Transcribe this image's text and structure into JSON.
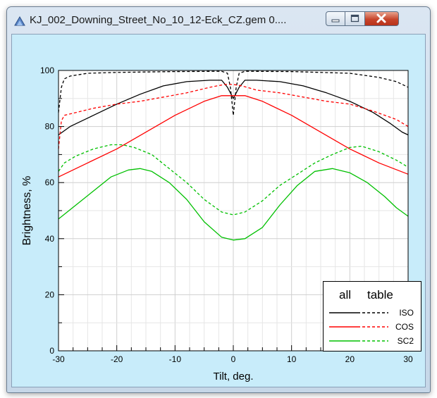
{
  "window": {
    "title": "KJ_002_Downing_Street_No_10_12-Eck_CZ.gem 0....",
    "icon": "app-icon",
    "controls": [
      "minimize-icon",
      "maximize-icon",
      "close-icon"
    ]
  },
  "chart_data": {
    "type": "line",
    "title": "",
    "xlabel": "Tilt, deg.",
    "ylabel": "Brightness, %",
    "xlim": [
      -30,
      30
    ],
    "ylim": [
      0,
      100
    ],
    "xticks": [
      "-30",
      "-20",
      "-10",
      "0",
      "10",
      "20",
      "30"
    ],
    "yticks": [
      "0",
      "20",
      "40",
      "60",
      "80",
      "100"
    ],
    "grid": true,
    "legend": {
      "placement": "bottom-right",
      "headers": [
        "all",
        "table"
      ],
      "entries": [
        "ISO",
        "COS",
        "SC2"
      ]
    },
    "colors": {
      "ISO": "#000000",
      "COS": "#ff0000",
      "SC2": "#00c000"
    },
    "series": [
      {
        "name": "ISO",
        "style": "solid",
        "color": "#000000",
        "points": [
          [
            -30,
            77
          ],
          [
            -28,
            80
          ],
          [
            -24,
            84
          ],
          [
            -20,
            88
          ],
          [
            -16,
            91.5
          ],
          [
            -12,
            94.5
          ],
          [
            -8,
            96
          ],
          [
            -4,
            96.5
          ],
          [
            -2,
            96.5
          ],
          [
            -1,
            94
          ],
          [
            0,
            90
          ],
          [
            1,
            94
          ],
          [
            2,
            96.5
          ],
          [
            4,
            96.5
          ],
          [
            8,
            96
          ],
          [
            12,
            94.5
          ],
          [
            16,
            92
          ],
          [
            20,
            89
          ],
          [
            24,
            85
          ],
          [
            27,
            81
          ],
          [
            29,
            78
          ],
          [
            30,
            77
          ]
        ]
      },
      {
        "name": "ISO",
        "style": "dashed",
        "color": "#000000",
        "points": [
          [
            -30,
            85
          ],
          [
            -29.5,
            94
          ],
          [
            -29,
            97
          ],
          [
            -28,
            98
          ],
          [
            -25,
            99
          ],
          [
            -20,
            99.3
          ],
          [
            -10,
            99.6
          ],
          [
            -2,
            99.7
          ],
          [
            -1,
            99
          ],
          [
            -0.5,
            94
          ],
          [
            0,
            84
          ],
          [
            0.5,
            94
          ],
          [
            1,
            99
          ],
          [
            2,
            99.7
          ],
          [
            10,
            99.6
          ],
          [
            20,
            99
          ],
          [
            25,
            97.5
          ],
          [
            28,
            96
          ],
          [
            30,
            94
          ]
        ]
      },
      {
        "name": "COS",
        "style": "solid",
        "color": "#ff0000",
        "points": [
          [
            -30,
            62
          ],
          [
            -25,
            67
          ],
          [
            -20,
            72
          ],
          [
            -15,
            78
          ],
          [
            -10,
            84
          ],
          [
            -5,
            89
          ],
          [
            -2,
            91
          ],
          [
            0,
            91
          ],
          [
            2,
            91
          ],
          [
            5,
            89
          ],
          [
            10,
            84
          ],
          [
            15,
            78
          ],
          [
            20,
            72
          ],
          [
            25,
            67
          ],
          [
            30,
            63
          ]
        ]
      },
      {
        "name": "COS",
        "style": "dashed",
        "color": "#ff0000",
        "points": [
          [
            -30,
            72
          ],
          [
            -29.5,
            82
          ],
          [
            -29,
            84
          ],
          [
            -27,
            85
          ],
          [
            -24,
            86.5
          ],
          [
            -20,
            88
          ],
          [
            -16,
            89
          ],
          [
            -12,
            90.5
          ],
          [
            -8,
            92
          ],
          [
            -4,
            94
          ],
          [
            -1.5,
            95
          ],
          [
            0,
            95
          ],
          [
            1.5,
            94.5
          ],
          [
            4,
            93
          ],
          [
            8,
            92
          ],
          [
            12,
            90.5
          ],
          [
            16,
            89
          ],
          [
            20,
            88
          ],
          [
            24,
            85.5
          ],
          [
            28,
            82.5
          ],
          [
            30,
            80
          ]
        ]
      },
      {
        "name": "SC2",
        "style": "solid",
        "color": "#00c000",
        "points": [
          [
            -30,
            47
          ],
          [
            -27,
            52
          ],
          [
            -24,
            57
          ],
          [
            -21,
            62
          ],
          [
            -18,
            64.5
          ],
          [
            -16,
            65
          ],
          [
            -14,
            64
          ],
          [
            -11,
            60
          ],
          [
            -8,
            54
          ],
          [
            -5,
            46
          ],
          [
            -2,
            40.5
          ],
          [
            0,
            39.5
          ],
          [
            2,
            40
          ],
          [
            5,
            44
          ],
          [
            8,
            52
          ],
          [
            11,
            59
          ],
          [
            14,
            64
          ],
          [
            17,
            65
          ],
          [
            20,
            63.5
          ],
          [
            23,
            60
          ],
          [
            26,
            55
          ],
          [
            28,
            51
          ],
          [
            30,
            48
          ]
        ]
      },
      {
        "name": "SC2",
        "style": "dashed",
        "color": "#00c000",
        "points": [
          [
            -30,
            64
          ],
          [
            -29,
            67
          ],
          [
            -27,
            69.5
          ],
          [
            -24,
            72
          ],
          [
            -21,
            73.5
          ],
          [
            -19,
            73.5
          ],
          [
            -17,
            72.5
          ],
          [
            -14,
            70
          ],
          [
            -11,
            65
          ],
          [
            -8,
            60
          ],
          [
            -5,
            54
          ],
          [
            -2,
            49.5
          ],
          [
            0,
            48.5
          ],
          [
            2,
            49.5
          ],
          [
            5,
            53.5
          ],
          [
            8,
            59
          ],
          [
            11,
            63
          ],
          [
            14,
            67
          ],
          [
            17,
            70
          ],
          [
            20,
            72.5
          ],
          [
            22,
            73
          ],
          [
            25,
            71
          ],
          [
            28,
            68
          ],
          [
            30,
            65.5
          ]
        ]
      }
    ]
  }
}
